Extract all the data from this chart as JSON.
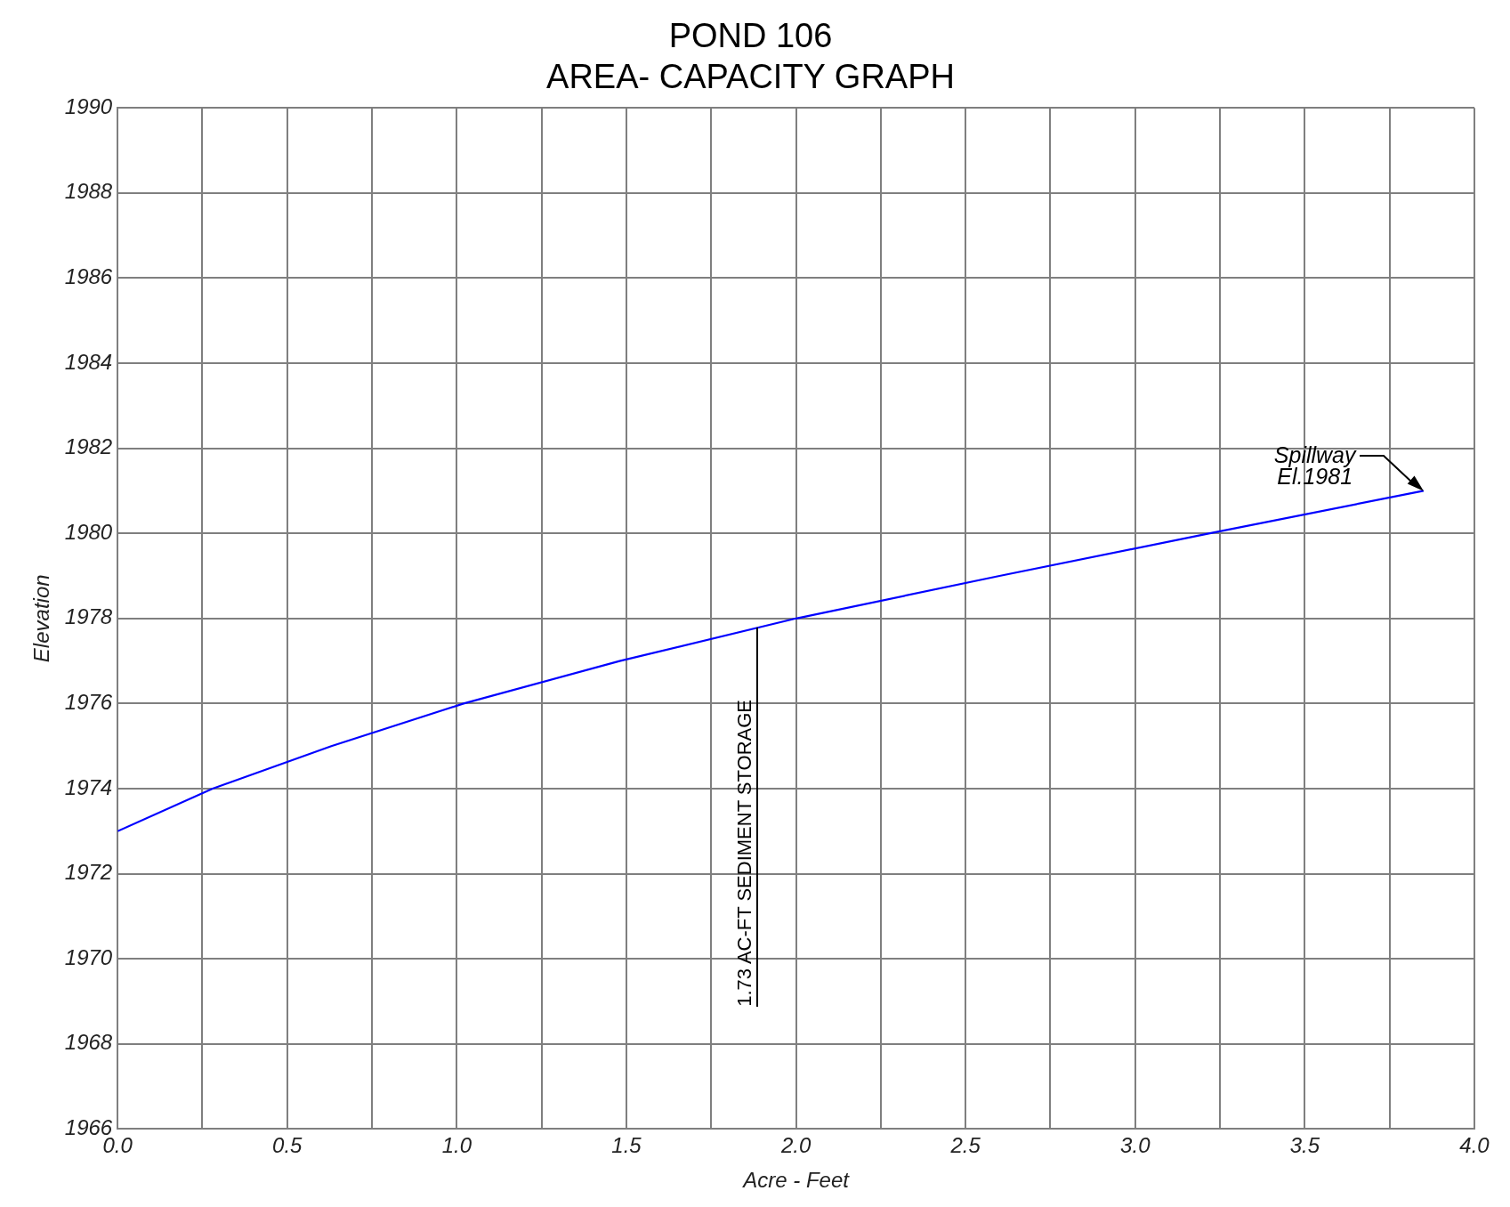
{
  "chart_data": {
    "type": "line",
    "title": "POND 106\nAREA- CAPACITY GRAPH",
    "xlabel": "Acre - Feet",
    "ylabel": "Elevation",
    "x": [
      0,
      0.28,
      0.63,
      1.02,
      1.48,
      2.0,
      2.6,
      3.22,
      3.85
    ],
    "series": [
      {
        "color": "#0000ff",
        "values": [
          1973,
          1974,
          1975,
          1976,
          1977,
          1978,
          1979,
          1980,
          1981
        ]
      }
    ],
    "xlim": [
      0,
      4
    ],
    "xticks": [
      {
        "value": 0,
        "label": "0.0"
      },
      {
        "value": 0.25,
        "label": null
      },
      {
        "value": 0.5,
        "label": "0.5"
      },
      {
        "value": 0.75,
        "label": null
      },
      {
        "value": 1,
        "label": "1.0"
      },
      {
        "value": 1.25,
        "label": null
      },
      {
        "value": 1.5,
        "label": "1.5"
      },
      {
        "value": 1.75,
        "label": null
      },
      {
        "value": 2,
        "label": "2.0"
      },
      {
        "value": 2.25,
        "label": null
      },
      {
        "value": 2.5,
        "label": "2.5"
      },
      {
        "value": 2.75,
        "label": null
      },
      {
        "value": 3,
        "label": "3.0"
      },
      {
        "value": 3.25,
        "label": null
      },
      {
        "value": 3.5,
        "label": "3.5"
      },
      {
        "value": 3.75,
        "label": null
      },
      {
        "value": 4,
        "label": "4.0"
      }
    ],
    "ylim": [
      1966,
      1990
    ],
    "yticks": [
      1966,
      1968,
      1970,
      1972,
      1974,
      1976,
      1978,
      1980,
      1982,
      1984,
      1986,
      1988,
      1990
    ],
    "grid": true,
    "legend": false,
    "marker": "none",
    "line_style": "solid",
    "annotations": [
      "1.73 AC-FT SEDIMENT STORAGE",
      "Spillway\nEl.1981"
    ]
  }
}
